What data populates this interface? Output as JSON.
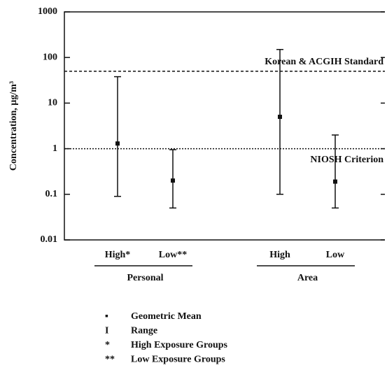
{
  "chart_data": {
    "type": "range",
    "ylabel": "Concentration, µg/m³",
    "categories": [
      "High*",
      "Low**",
      "High",
      "Low"
    ],
    "groups": [
      "Personal",
      "Area"
    ],
    "series": [
      {
        "name": "Geometric Mean",
        "color": "#111111",
        "values": [
          1.3,
          0.2,
          5,
          0.19
        ]
      }
    ],
    "range_low": [
      0.09,
      0.05,
      0.1,
      0.05
    ],
    "range_high": [
      38,
      0.95,
      150,
      2
    ],
    "reference_lines": [
      {
        "value": 50,
        "label": "Korean & ACGIH Standard"
      },
      {
        "value": 1,
        "label": "NIOSH Criterion"
      }
    ],
    "ylim": [
      0.01,
      1000
    ],
    "yticks": [
      0.01,
      0.1,
      1,
      10,
      100,
      1000
    ],
    "log_y": true,
    "legend": [
      {
        "symbol": "▪",
        "label": "Geometric Mean"
      },
      {
        "symbol": "I",
        "label": "Range"
      },
      {
        "symbol": "*",
        "label": "High Exposure Groups"
      },
      {
        "symbol": "**",
        "label": "Low Exposure Groups"
      }
    ]
  }
}
